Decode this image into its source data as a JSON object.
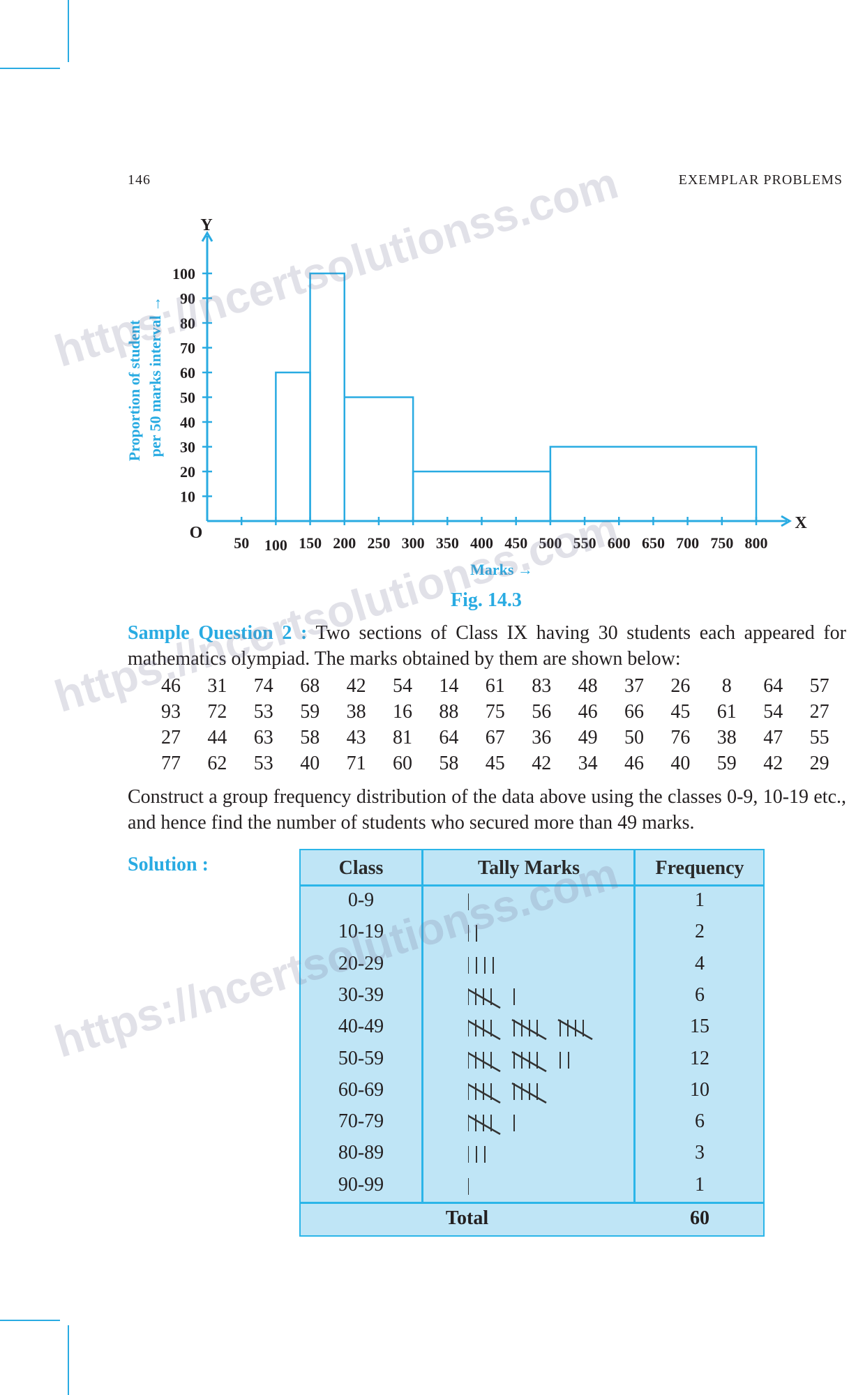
{
  "header": {
    "page_number": "146",
    "title": "EXEMPLAR PROBLEMS"
  },
  "watermark": "https://ncertsolutionss.com",
  "colors": {
    "accent": "#29abe2",
    "table_bg": "#bfe5f6",
    "table_border": "#2bb5e8"
  },
  "chart_data": {
    "type": "bar",
    "subtype": "histogram",
    "xlabel": "Marks →",
    "ylabel": [
      "Proportion of student",
      "per 50 marks interval →"
    ],
    "axis_letters": {
      "x": "X",
      "y": "Y",
      "origin": "O"
    },
    "x_ticks": [
      50,
      100,
      150,
      200,
      250,
      300,
      350,
      400,
      450,
      500,
      550,
      600,
      650,
      700,
      750,
      800
    ],
    "y_ticks": [
      10,
      20,
      30,
      40,
      50,
      60,
      70,
      80,
      90,
      100
    ],
    "xlim": [
      0,
      800
    ],
    "ylim": [
      0,
      100
    ],
    "bins": [
      {
        "from": 100,
        "to": 150,
        "value": 60
      },
      {
        "from": 150,
        "to": 200,
        "value": 100
      },
      {
        "from": 200,
        "to": 300,
        "value": 50
      },
      {
        "from": 300,
        "to": 500,
        "value": 20
      },
      {
        "from": 500,
        "to": 800,
        "value": 30
      }
    ],
    "grid": false
  },
  "figure": {
    "caption": "Fig. 14.3"
  },
  "question": {
    "label": "Sample Question 2 :",
    "text": " Two sections of Class IX having 30 students each appeared for mathematics olympiad. The marks obtained by them are shown below:",
    "data_rows": [
      [
        "46",
        "31",
        "74",
        "68",
        "42",
        "54",
        "14",
        "61",
        "83",
        "48",
        "37",
        "26",
        "8",
        "64",
        "57"
      ],
      [
        "93",
        "72",
        "53",
        "59",
        "38",
        "16",
        "88",
        "75",
        "56",
        "46",
        "66",
        "45",
        "61",
        "54",
        "27"
      ],
      [
        "27",
        "44",
        "63",
        "58",
        "43",
        "81",
        "64",
        "67",
        "36",
        "49",
        "50",
        "76",
        "38",
        "47",
        "55"
      ],
      [
        "77",
        "62",
        "53",
        "40",
        "71",
        "60",
        "58",
        "45",
        "42",
        "34",
        "46",
        "40",
        "59",
        "42",
        "29"
      ]
    ],
    "instruction": "Construct a group frequency distribution of the data above using the classes 0-9, 10-19 etc., and hence find the number of students who secured more than 49 marks."
  },
  "solution": {
    "label": "Solution :",
    "table": {
      "headers": [
        "Class",
        "Tally Marks",
        "Frequency"
      ],
      "rows": [
        {
          "class": "0-9",
          "tally": 1,
          "frequency": "1"
        },
        {
          "class": "10-19",
          "tally": 2,
          "frequency": "2"
        },
        {
          "class": "20-29",
          "tally": 4,
          "frequency": "4"
        },
        {
          "class": "30-39",
          "tally": 6,
          "frequency": "6"
        },
        {
          "class": "40-49",
          "tally": 15,
          "frequency": "15"
        },
        {
          "class": "50-59",
          "tally": 12,
          "frequency": "12"
        },
        {
          "class": "60-69",
          "tally": 10,
          "frequency": "10"
        },
        {
          "class": "70-79",
          "tally": 6,
          "frequency": "6"
        },
        {
          "class": "80-89",
          "tally": 3,
          "frequency": "3"
        },
        {
          "class": "90-99",
          "tally": 1,
          "frequency": "1"
        }
      ],
      "total_label": "Total",
      "total_value": "60"
    }
  }
}
